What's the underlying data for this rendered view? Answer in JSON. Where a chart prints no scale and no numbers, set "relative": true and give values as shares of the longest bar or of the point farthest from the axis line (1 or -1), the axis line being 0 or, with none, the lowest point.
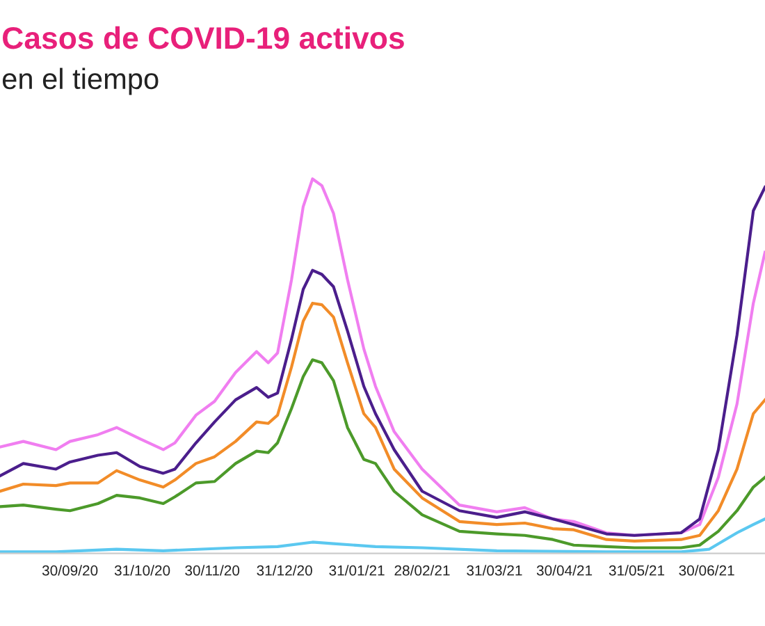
{
  "chart_data": {
    "type": "line",
    "title": "Casos de COVID-19 activos",
    "subtitle": "en el tiempo",
    "relative": true,
    "marker": "none",
    "line_style": "solid",
    "x": [
      "2020-08-31",
      "2020-09-10",
      "2020-09-24",
      "2020-09-30",
      "2020-10-12",
      "2020-10-20",
      "2020-10-30",
      "2020-11-09",
      "2020-11-14",
      "2020-11-23",
      "2020-12-01",
      "2020-12-10",
      "2020-12-19",
      "2020-12-24",
      "2020-12-28",
      "2021-01-03",
      "2021-01-08",
      "2021-01-12",
      "2021-01-16",
      "2021-01-21",
      "2021-01-27",
      "2021-02-03",
      "2021-02-08",
      "2021-02-16",
      "2021-02-28",
      "2021-03-16",
      "2021-04-01",
      "2021-04-13",
      "2021-04-25",
      "2021-05-04",
      "2021-05-18",
      "2021-05-30",
      "2021-06-19",
      "2021-06-27",
      "2021-07-05",
      "2021-07-13",
      "2021-07-20",
      "2021-07-25"
    ],
    "xlim": [
      "2020-08-31",
      "2021-07-25"
    ],
    "xticks": [
      {
        "value": "2020-09-30",
        "label": "30/09/20"
      },
      {
        "value": "2020-10-31",
        "label": "31/10/20"
      },
      {
        "value": "2020-11-30",
        "label": "30/11/20"
      },
      {
        "value": "2020-12-31",
        "label": "31/12/20"
      },
      {
        "value": "2021-01-31",
        "label": "31/01/21"
      },
      {
        "value": "2021-02-28",
        "label": "28/02/21"
      },
      {
        "value": "2021-03-31",
        "label": "31/03/21"
      },
      {
        "value": "2021-04-30",
        "label": "30/04/21"
      },
      {
        "value": "2021-05-31",
        "label": "31/05/21"
      },
      {
        "value": "2021-06-30",
        "label": "30/06/21"
      }
    ],
    "series": [
      {
        "color": "#f07ef0",
        "values": [
          0.284,
          0.299,
          0.277,
          0.299,
          0.317,
          0.336,
          0.306,
          0.277,
          0.295,
          0.369,
          0.406,
          0.483,
          0.539,
          0.509,
          0.535,
          0.731,
          0.926,
          1.0,
          0.982,
          0.908,
          0.731,
          0.546,
          0.446,
          0.325,
          0.225,
          0.129,
          0.111,
          0.122,
          0.092,
          0.085,
          0.055,
          0.048,
          0.055,
          0.077,
          0.203,
          0.399,
          0.668,
          0.804
        ]
      },
      {
        "color": "#4b1e8c",
        "values": [
          0.207,
          0.24,
          0.225,
          0.244,
          0.262,
          0.269,
          0.232,
          0.214,
          0.225,
          0.295,
          0.351,
          0.41,
          0.443,
          0.417,
          0.428,
          0.572,
          0.705,
          0.756,
          0.745,
          0.712,
          0.594,
          0.446,
          0.373,
          0.277,
          0.166,
          0.114,
          0.096,
          0.111,
          0.092,
          0.077,
          0.052,
          0.048,
          0.055,
          0.092,
          0.277,
          0.583,
          0.915,
          0.978
        ]
      },
      {
        "color": "#f28c28",
        "values": [
          0.166,
          0.185,
          0.181,
          0.188,
          0.188,
          0.221,
          0.196,
          0.177,
          0.196,
          0.24,
          0.258,
          0.299,
          0.351,
          0.347,
          0.369,
          0.498,
          0.62,
          0.668,
          0.664,
          0.631,
          0.509,
          0.373,
          0.336,
          0.225,
          0.148,
          0.085,
          0.077,
          0.081,
          0.066,
          0.063,
          0.037,
          0.033,
          0.037,
          0.048,
          0.114,
          0.225,
          0.373,
          0.41
        ]
      },
      {
        "color": "#4c9a2a",
        "values": [
          0.125,
          0.129,
          0.118,
          0.114,
          0.133,
          0.155,
          0.148,
          0.133,
          0.151,
          0.188,
          0.192,
          0.24,
          0.273,
          0.269,
          0.295,
          0.387,
          0.472,
          0.517,
          0.509,
          0.461,
          0.336,
          0.251,
          0.24,
          0.166,
          0.103,
          0.059,
          0.052,
          0.048,
          0.037,
          0.022,
          0.018,
          0.015,
          0.015,
          0.022,
          0.059,
          0.114,
          0.177,
          0.203
        ]
      },
      {
        "color": "#5bc8f0",
        "x": [
          "2020-08-31",
          "2020-09-24",
          "2020-10-20",
          "2020-11-09",
          "2020-12-10",
          "2020-12-28",
          "2021-01-12",
          "2021-01-21",
          "2021-02-08",
          "2021-02-28",
          "2021-04-01",
          "2021-05-18",
          "2021-06-19",
          "2021-07-01",
          "2021-07-13",
          "2021-07-20",
          "2021-07-25"
        ],
        "values": [
          0.004,
          0.004,
          0.011,
          0.007,
          0.015,
          0.018,
          0.03,
          0.026,
          0.018,
          0.015,
          0.007,
          0.004,
          0.004,
          0.011,
          0.055,
          0.077,
          0.092
        ]
      }
    ]
  }
}
